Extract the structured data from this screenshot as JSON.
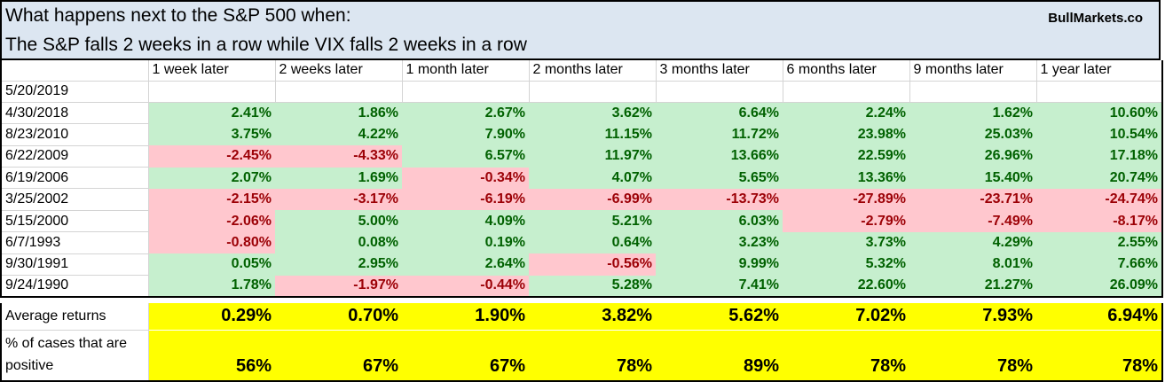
{
  "title_line1": "What happens next to the S&P 500 when:",
  "title_line2": "The S&P falls 2 weeks in a row while VIX falls 2 weeks in a row",
  "brand": "BullMarkets.co",
  "columns": [
    "1 week later",
    "2 weeks later",
    "1 month later",
    "2 months later",
    "3 months later",
    "6 months later",
    "9 months later",
    "1 year later"
  ],
  "rows": [
    {
      "date": "5/20/2019",
      "values": [
        "",
        "",
        "",
        "",
        "",
        "",
        "",
        ""
      ]
    },
    {
      "date": "4/30/2018",
      "values": [
        "2.41%",
        "1.86%",
        "2.67%",
        "3.62%",
        "6.64%",
        "2.24%",
        "1.62%",
        "10.60%"
      ]
    },
    {
      "date": "8/23/2010",
      "values": [
        "3.75%",
        "4.22%",
        "7.90%",
        "11.15%",
        "11.72%",
        "23.98%",
        "25.03%",
        "10.54%"
      ]
    },
    {
      "date": "6/22/2009",
      "values": [
        "-2.45%",
        "-4.33%",
        "6.57%",
        "11.97%",
        "13.66%",
        "22.59%",
        "26.96%",
        "17.18%"
      ]
    },
    {
      "date": "6/19/2006",
      "values": [
        "2.07%",
        "1.69%",
        "-0.34%",
        "4.07%",
        "5.65%",
        "13.36%",
        "15.40%",
        "20.74%"
      ]
    },
    {
      "date": "3/25/2002",
      "values": [
        "-2.15%",
        "-3.17%",
        "-6.19%",
        "-6.99%",
        "-13.73%",
        "-27.89%",
        "-23.71%",
        "-24.74%"
      ]
    },
    {
      "date": "5/15/2000",
      "values": [
        "-2.06%",
        "5.00%",
        "4.09%",
        "5.21%",
        "6.03%",
        "-2.79%",
        "-7.49%",
        "-8.17%"
      ]
    },
    {
      "date": "6/7/1993",
      "values": [
        "-0.80%",
        "0.08%",
        "0.19%",
        "0.64%",
        "3.23%",
        "3.73%",
        "4.29%",
        "2.55%"
      ]
    },
    {
      "date": "9/30/1991",
      "values": [
        "0.05%",
        "2.95%",
        "2.64%",
        "-0.56%",
        "9.99%",
        "5.32%",
        "8.01%",
        "7.66%"
      ]
    },
    {
      "date": "9/24/1990",
      "values": [
        "1.78%",
        "-1.97%",
        "-0.44%",
        "5.28%",
        "7.41%",
        "22.60%",
        "21.27%",
        "26.09%"
      ]
    }
  ],
  "average": {
    "label": "Average returns",
    "values": [
      "0.29%",
      "0.70%",
      "1.90%",
      "3.82%",
      "5.62%",
      "7.02%",
      "7.93%",
      "6.94%"
    ]
  },
  "positive": {
    "label": "% of cases that are positive",
    "values": [
      "56%",
      "67%",
      "67%",
      "78%",
      "89%",
      "78%",
      "78%",
      "78%"
    ]
  },
  "colors": {
    "positive_fill": "#c6efce",
    "positive_text": "#006100",
    "negative_fill": "#ffc7ce",
    "negative_text": "#9c0006",
    "summary_fill": "#ffff00",
    "header_fill": "#dce6f1"
  }
}
